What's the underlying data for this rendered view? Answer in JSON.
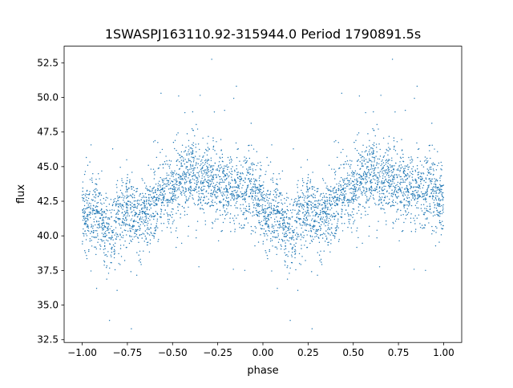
{
  "chart_data": {
    "type": "scatter",
    "title": "1SWASPJ163110.92-315944.0 Period 1790891.5s",
    "xlabel": "phase",
    "ylabel": "flux",
    "xlim": [
      -1.1,
      1.1
    ],
    "ylim": [
      32.3,
      53.7
    ],
    "xticks": [
      -1.0,
      -0.75,
      -0.5,
      -0.25,
      0.0,
      0.25,
      0.5,
      0.75,
      1.0
    ],
    "xtick_labels": [
      "−1.00",
      "−0.75",
      "−0.50",
      "−0.25",
      "0.00",
      "0.25",
      "0.50",
      "0.75",
      "1.00"
    ],
    "yticks": [
      32.5,
      35.0,
      37.5,
      40.0,
      42.5,
      45.0,
      47.5,
      50.0,
      52.5
    ],
    "ytick_labels": [
      "32.5",
      "35.0",
      "37.5",
      "40.0",
      "42.5",
      "45.0",
      "47.5",
      "50.0",
      "52.5"
    ],
    "grid": false,
    "legend": "none",
    "point_color": "#1f77b4",
    "description_of_series": "phase-folded light curve, pattern repeated for phase -1..0 and 0..1",
    "profile": {
      "phase": [
        0.0,
        0.04,
        0.08,
        0.12,
        0.16,
        0.2,
        0.25,
        0.3,
        0.35,
        0.4,
        0.45,
        0.5,
        0.55,
        0.6,
        0.65,
        0.7,
        0.75,
        0.8,
        0.85,
        0.9,
        0.95,
        1.0
      ],
      "flux": [
        42.0,
        41.0,
        41.5,
        40.5,
        40.0,
        41.5,
        42.0,
        41.0,
        41.5,
        42.5,
        43.0,
        43.5,
        44.0,
        44.5,
        44.0,
        44.0,
        44.0,
        43.5,
        43.0,
        43.5,
        43.0,
        42.0
      ]
    },
    "scatter_sd": 1.3
  }
}
